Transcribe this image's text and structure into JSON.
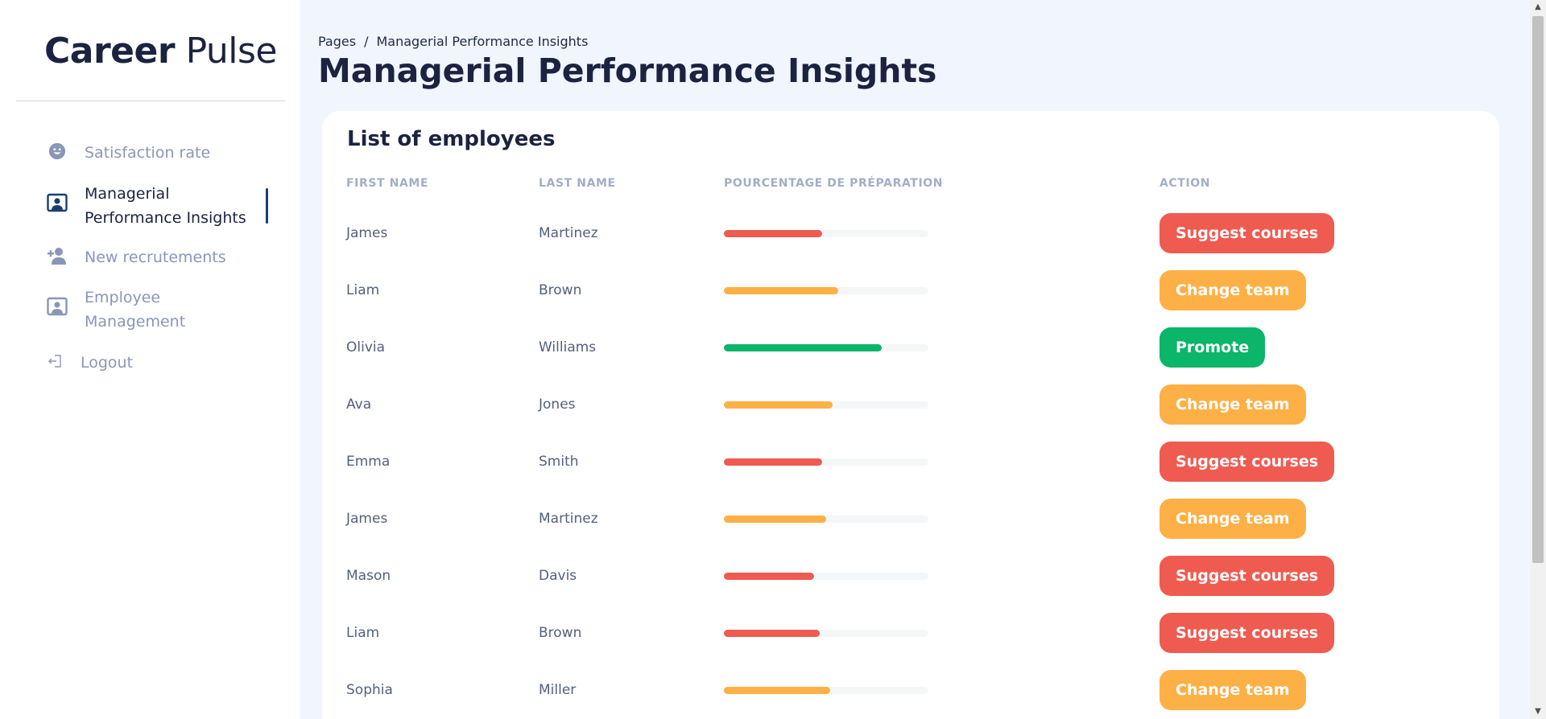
{
  "brand": {
    "bold": "Career",
    "light": "Pulse"
  },
  "sidebar": {
    "items": [
      {
        "label": "Satisfaction rate",
        "icon": "smiley-icon",
        "active": false
      },
      {
        "label": "Managerial Performance Insights",
        "icon": "user-board-icon",
        "active": true
      },
      {
        "label": "New recrutements",
        "icon": "add-user-icon",
        "active": false
      },
      {
        "label": "Employee Management",
        "icon": "user-board-icon",
        "active": false
      },
      {
        "label": "Logout",
        "icon": "logout-icon",
        "active": false
      }
    ]
  },
  "breadcrumb": {
    "root": "Pages",
    "separator": "/",
    "current": "Managerial Performance Insights"
  },
  "page_title": "Managerial Performance Insights",
  "table": {
    "title": "List of employees",
    "headers": {
      "first_name": "First name",
      "last_name": "Last name",
      "percentage": "Pourcentage de préparation",
      "action": "Action"
    },
    "rows": [
      {
        "first": "James",
        "last": "Martinez",
        "progress": 48,
        "status": "red",
        "action": "Suggest courses"
      },
      {
        "first": "Liam",
        "last": "Brown",
        "progress": 56,
        "status": "orange",
        "action": "Change team"
      },
      {
        "first": "Olivia",
        "last": "Williams",
        "progress": 77,
        "status": "green",
        "action": "Promote"
      },
      {
        "first": "Ava",
        "last": "Jones",
        "progress": 53,
        "status": "orange",
        "action": "Change team"
      },
      {
        "first": "Emma",
        "last": "Smith",
        "progress": 48,
        "status": "red",
        "action": "Suggest courses"
      },
      {
        "first": "James",
        "last": "Martinez",
        "progress": 50,
        "status": "orange",
        "action": "Change team"
      },
      {
        "first": "Mason",
        "last": "Davis",
        "progress": 44,
        "status": "red",
        "action": "Suggest courses"
      },
      {
        "first": "Liam",
        "last": "Brown",
        "progress": 47,
        "status": "red",
        "action": "Suggest courses"
      },
      {
        "first": "Sophia",
        "last": "Miller",
        "progress": 52,
        "status": "orange",
        "action": "Change team"
      }
    ]
  },
  "colors": {
    "red": "#ef5b50",
    "orange": "#fdb046",
    "green": "#0bb56a",
    "brand_dark": "#1b2340"
  }
}
